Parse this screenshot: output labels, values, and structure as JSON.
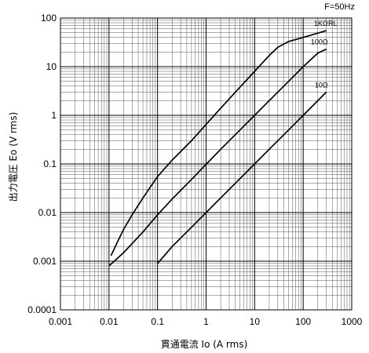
{
  "chart_data": {
    "type": "line",
    "xscale": "log",
    "yscale": "log",
    "xlim": [
      0.001,
      1000
    ],
    "ylim": [
      0.0001,
      100
    ],
    "grid": true,
    "xlabel": "貫通電流 Io (A rms)",
    "ylabel": "出力電圧 Eo (V rms)",
    "annotation": "F=50Hz",
    "legend_title": "RL",
    "x_ticks": [
      "0.001",
      "0.01",
      "0.1",
      "1",
      "10",
      "100",
      "1000"
    ],
    "y_ticks": [
      "0.0001",
      "0.001",
      "0.01",
      "0.1",
      "1",
      "10",
      "100"
    ],
    "series": [
      {
        "name": "1KΩ",
        "x": [
          0.011,
          0.015,
          0.02,
          0.03,
          0.05,
          0.08,
          0.1,
          0.2,
          0.5,
          1,
          2,
          5,
          10,
          20,
          30,
          50,
          100,
          300
        ],
        "y": [
          0.0013,
          0.0025,
          0.0045,
          0.009,
          0.02,
          0.04,
          0.055,
          0.12,
          0.3,
          0.65,
          1.4,
          3.8,
          8,
          17,
          25,
          33,
          40,
          55
        ]
      },
      {
        "name": "100Ω",
        "x": [
          0.01,
          0.02,
          0.05,
          0.1,
          0.2,
          0.5,
          1,
          2,
          5,
          10,
          20,
          50,
          100,
          200,
          300
        ],
        "y": [
          0.0008,
          0.0015,
          0.004,
          0.009,
          0.019,
          0.048,
          0.098,
          0.2,
          0.5,
          1,
          2,
          5,
          10,
          19,
          23
        ]
      },
      {
        "name": "10Ω",
        "x": [
          0.1,
          0.2,
          0.5,
          1,
          2,
          5,
          10,
          20,
          50,
          100,
          300
        ],
        "y": [
          0.0009,
          0.002,
          0.005,
          0.01,
          0.02,
          0.05,
          0.1,
          0.2,
          0.5,
          1,
          3
        ]
      }
    ]
  }
}
